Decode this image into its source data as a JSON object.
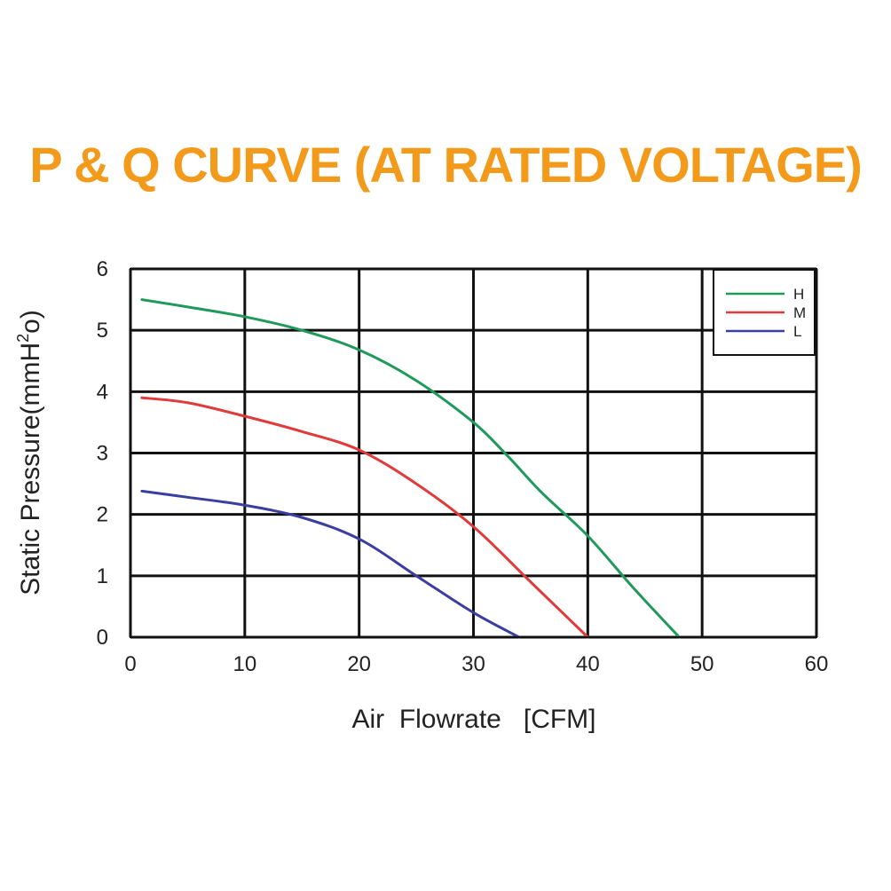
{
  "chart_data": {
    "type": "line",
    "title": "P & Q CURVE (AT RATED VOLTAGE)",
    "xlabel": "Air  Flowrate   [CFM]",
    "ylabel": "Static Pressure(mmH²o)",
    "xlim": [
      0,
      60
    ],
    "ylim": [
      0,
      6
    ],
    "xticks": [
      "0",
      "10",
      "20",
      "30",
      "40",
      "50",
      "60"
    ],
    "yticks": [
      "0",
      "1",
      "2",
      "3",
      "4",
      "5",
      "6"
    ],
    "grid": true,
    "legend_position": "top-right",
    "series": [
      {
        "name": "H",
        "color": "#1f9a5a",
        "points": [
          [
            1,
            5.5
          ],
          [
            5,
            5.38
          ],
          [
            10,
            5.22
          ],
          [
            15,
            5.0
          ],
          [
            20,
            4.68
          ],
          [
            25,
            4.18
          ],
          [
            30,
            3.5
          ],
          [
            33,
            2.95
          ],
          [
            36,
            2.35
          ],
          [
            40,
            1.65
          ],
          [
            44,
            0.8
          ],
          [
            48,
            0.0
          ]
        ]
      },
      {
        "name": "M",
        "color": "#e03a3a",
        "points": [
          [
            1,
            3.9
          ],
          [
            5,
            3.82
          ],
          [
            10,
            3.6
          ],
          [
            15,
            3.35
          ],
          [
            20,
            3.05
          ],
          [
            25,
            2.5
          ],
          [
            30,
            1.8
          ],
          [
            35,
            0.9
          ],
          [
            40,
            0.0
          ]
        ]
      },
      {
        "name": "L",
        "color": "#3a3ea0",
        "points": [
          [
            1,
            2.38
          ],
          [
            5,
            2.28
          ],
          [
            10,
            2.15
          ],
          [
            15,
            1.95
          ],
          [
            20,
            1.6
          ],
          [
            25,
            1.0
          ],
          [
            30,
            0.4
          ],
          [
            34,
            0.0
          ]
        ]
      }
    ]
  }
}
